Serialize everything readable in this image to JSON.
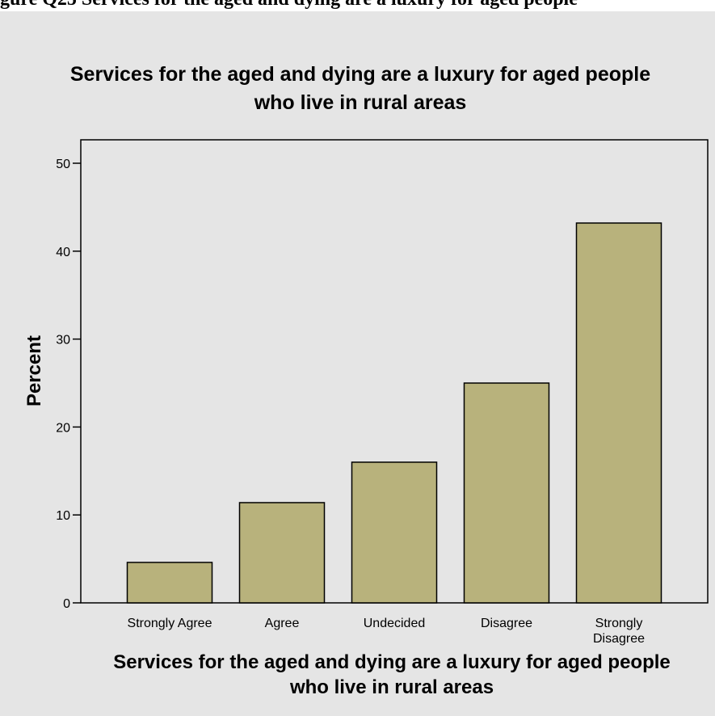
{
  "page_caption": "gure Q25 Services for the aged and dying are a luxury for aged people",
  "chart_data": {
    "type": "bar",
    "title_lines": [
      "Services for the aged and dying are a luxury for aged people",
      "who live in rural areas"
    ],
    "xlabel_lines": [
      "Services for the aged and dying are a luxury for aged people",
      "who live in rural areas"
    ],
    "ylabel": "Percent",
    "categories": [
      [
        "Strongly Agree"
      ],
      [
        "Agree"
      ],
      [
        "Undecided"
      ],
      [
        "Disagree"
      ],
      [
        "Strongly",
        "Disagree"
      ]
    ],
    "values": [
      4.6,
      11.4,
      16.0,
      25.0,
      43.2
    ],
    "ylim": [
      0,
      50
    ],
    "yticks": [
      0,
      10,
      20,
      30,
      40,
      50
    ],
    "grid": false,
    "legend": "none",
    "colors": {
      "bar": "#b8b27c",
      "panel": "#e5e5e5",
      "plot_area": "#e5e5e5"
    }
  }
}
